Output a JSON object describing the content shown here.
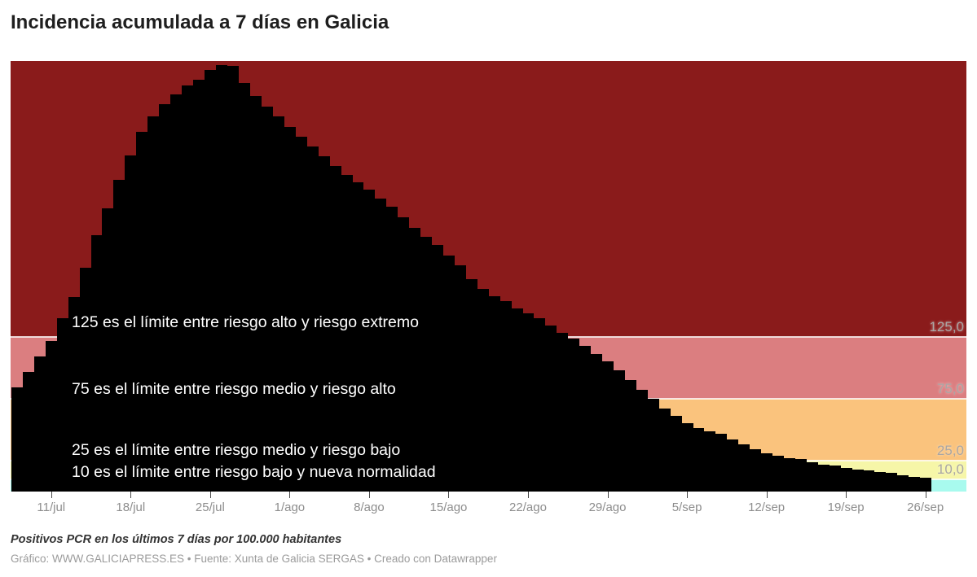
{
  "header": {
    "title": "Incidencia acumulada a 7 días en Galicia"
  },
  "chart_data": {
    "type": "bar",
    "title": "Incidencia acumulada a 7 días en Galicia",
    "xlabel": "",
    "ylabel": "",
    "ylim": [
      0,
      348
    ],
    "grid": "off",
    "legend": "none",
    "bar_color": "#000000",
    "x": [
      "8/jul",
      "9/jul",
      "10/jul",
      "11/jul",
      "12/jul",
      "13/jul",
      "14/jul",
      "15/jul",
      "16/jul",
      "17/jul",
      "18/jul",
      "19/jul",
      "20/jul",
      "21/jul",
      "22/jul",
      "23/jul",
      "24/jul",
      "25/jul",
      "26/jul",
      "27/jul",
      "28/jul",
      "29/jul",
      "30/jul",
      "31/jul",
      "1/ago",
      "2/ago",
      "3/ago",
      "4/ago",
      "5/ago",
      "6/ago",
      "7/ago",
      "8/ago",
      "9/ago",
      "10/ago",
      "11/ago",
      "12/ago",
      "13/ago",
      "14/ago",
      "15/ago",
      "16/ago",
      "17/ago",
      "18/ago",
      "19/ago",
      "20/ago",
      "21/ago",
      "22/ago",
      "23/ago",
      "24/ago",
      "25/ago",
      "26/ago",
      "27/ago",
      "28/ago",
      "29/ago",
      "30/ago",
      "31/ago",
      "1/sep",
      "2/sep",
      "3/sep",
      "4/sep",
      "5/sep",
      "6/sep",
      "7/sep",
      "8/sep",
      "9/sep",
      "10/sep",
      "11/sep",
      "12/sep",
      "13/sep",
      "14/sep",
      "15/sep",
      "16/sep",
      "17/sep",
      "18/sep",
      "19/sep",
      "20/sep",
      "21/sep",
      "22/sep",
      "23/sep",
      "24/sep",
      "25/sep",
      "26/sep"
    ],
    "values": [
      84,
      97,
      109,
      122,
      140,
      157,
      181,
      207,
      229,
      252,
      272,
      291,
      303,
      313,
      321,
      328,
      333,
      341,
      345,
      344,
      330,
      320,
      311,
      303,
      295,
      287,
      279,
      271,
      263,
      256,
      250,
      244,
      237,
      230,
      222,
      213,
      206,
      199,
      191,
      183,
      172,
      164,
      158,
      154,
      148,
      144,
      140,
      134,
      128,
      124,
      118,
      111,
      105,
      98,
      90,
      82,
      75,
      67,
      61,
      55,
      51,
      49,
      47,
      42,
      38,
      34,
      31,
      29,
      27,
      26,
      24,
      22,
      21,
      19,
      18,
      17,
      16,
      15,
      13,
      12,
      11
    ],
    "x_ticks": [
      {
        "label": "11/jul",
        "day_index": 3
      },
      {
        "label": "18/jul",
        "day_index": 10
      },
      {
        "label": "25/jul",
        "day_index": 17
      },
      {
        "label": "1/ago",
        "day_index": 24
      },
      {
        "label": "8/ago",
        "day_index": 31
      },
      {
        "label": "15/ago",
        "day_index": 38
      },
      {
        "label": "22/ago",
        "day_index": 45
      },
      {
        "label": "29/ago",
        "day_index": 52
      },
      {
        "label": "5/sep",
        "day_index": 59
      },
      {
        "label": "12/sep",
        "day_index": 66
      },
      {
        "label": "19/sep",
        "day_index": 73
      },
      {
        "label": "26/sep",
        "day_index": 80
      }
    ],
    "risk_bands": [
      {
        "name": "riesgo extremo",
        "from": 125,
        "to": 348,
        "color": "#8A1B1B"
      },
      {
        "name": "riesgo alto",
        "from": 75,
        "to": 125,
        "color": "#DB7E80"
      },
      {
        "name": "riesgo medio",
        "from": 25,
        "to": 75,
        "color": "#FAC37D"
      },
      {
        "name": "riesgo bajo",
        "from": 10,
        "to": 25,
        "color": "#F6F6A8"
      },
      {
        "name": "nueva normalidad",
        "from": 0,
        "to": 10,
        "color": "#A8FAEE"
      }
    ],
    "thresholds": [
      {
        "value": 125,
        "label": "125,0"
      },
      {
        "value": 75,
        "label": "75,0"
      },
      {
        "value": 25,
        "label": "25,0"
      },
      {
        "value": 10,
        "label": "10,0"
      }
    ],
    "annotations": [
      {
        "text": "125 es el límite entre riesgo alto y riesgo extremo",
        "value": 125
      },
      {
        "text": "75 es el límite entre riesgo medio y riesgo alto",
        "value": 75
      },
      {
        "text": "25 es el límite entre riesgo medio y riesgo bajo",
        "value": 25
      },
      {
        "text": "10 es el límite entre riesgo bajo y nueva normalidad",
        "value": 10
      }
    ]
  },
  "footer": {
    "note": "Positivos PCR en los últimos 7 días por 100.000 habitantes",
    "byline": "Gráfico: WWW.GALICIAPRESS.ES • Fuente: Xunta de Galicia SERGAS • Creado con Datawrapper"
  },
  "colors": {
    "bar": "#000000",
    "annotation_text": "#ffffff",
    "threshold_label": "#a9a6a4",
    "threshold_line": "#ffffff",
    "axis_label": "#8d8d8d",
    "tick": "#4a4a4a",
    "title": "#1e1e1e",
    "note": "#333333",
    "byline": "#9b9b9b"
  }
}
